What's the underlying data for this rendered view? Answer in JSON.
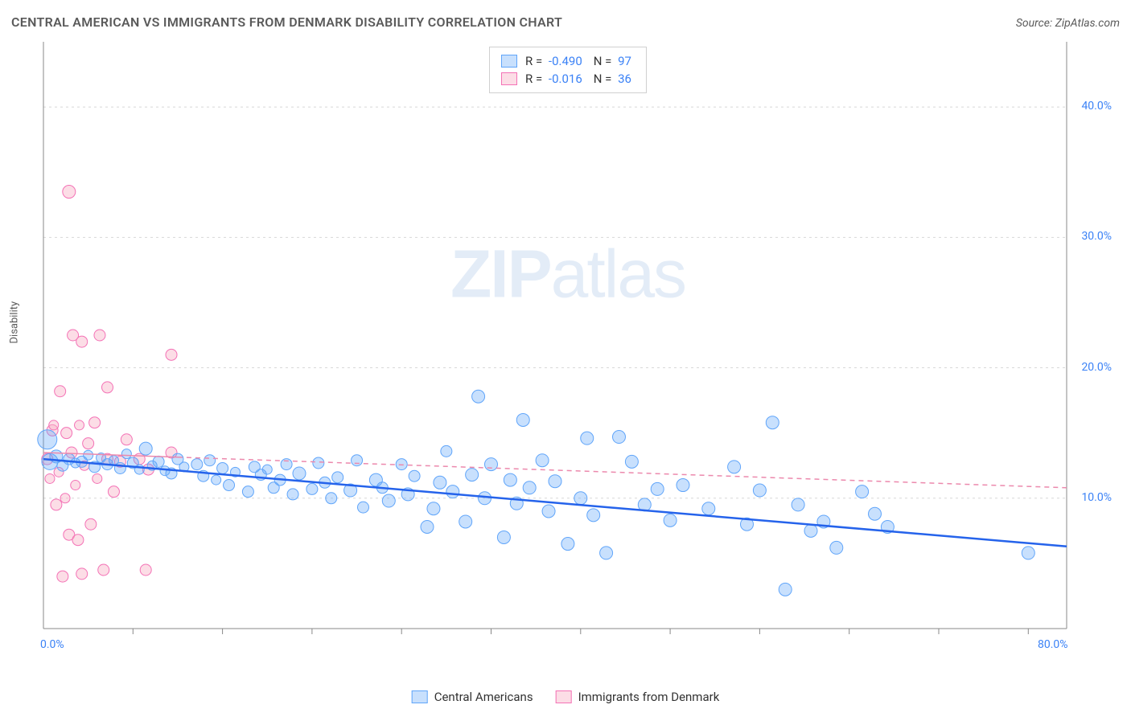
{
  "title": "CENTRAL AMERICAN VS IMMIGRANTS FROM DENMARK DISABILITY CORRELATION CHART",
  "source": "Source: ZipAtlas.com",
  "y_axis_label": "Disability",
  "watermark_zip": "ZIP",
  "watermark_atlas": "atlas",
  "chart": {
    "type": "scatter",
    "xlim": [
      0,
      80
    ],
    "ylim": [
      0,
      45
    ],
    "x_ticks": [
      0,
      80
    ],
    "x_tick_labels": [
      "0.0%",
      "80.0%"
    ],
    "x_minor_ticks": [
      7,
      14,
      21,
      28,
      35,
      42,
      49,
      56,
      63,
      70,
      77
    ],
    "y_ticks": [
      10,
      20,
      30,
      40
    ],
    "y_tick_labels": [
      "10.0%",
      "20.0%",
      "30.0%",
      "40.0%"
    ],
    "grid_color": "#d8d8d8",
    "axis_color": "#888888",
    "background_color": "#ffffff",
    "series": [
      {
        "name": "Central Americans",
        "color_fill": "rgba(96, 165, 250, 0.35)",
        "color_stroke": "#60a5fa",
        "trend_color": "#2563eb",
        "trend_dash": "none",
        "trend_width": 2.5,
        "r": "-0.490",
        "n": "97",
        "trend": {
          "x1": 0,
          "y1": 13.0,
          "x2": 80,
          "y2": 6.3
        },
        "points": [
          {
            "x": 0.3,
            "y": 14.5,
            "r": 12
          },
          {
            "x": 0.5,
            "y": 12.8,
            "r": 10
          },
          {
            "x": 1,
            "y": 13.2,
            "r": 8
          },
          {
            "x": 1.5,
            "y": 12.5,
            "r": 7
          },
          {
            "x": 2,
            "y": 13.0,
            "r": 7
          },
          {
            "x": 2.5,
            "y": 12.7,
            "r": 6
          },
          {
            "x": 3,
            "y": 12.8,
            "r": 7
          },
          {
            "x": 3.5,
            "y": 13.3,
            "r": 6
          },
          {
            "x": 4,
            "y": 12.4,
            "r": 7
          },
          {
            "x": 4.5,
            "y": 13.1,
            "r": 6
          },
          {
            "x": 5,
            "y": 12.6,
            "r": 7
          },
          {
            "x": 5.5,
            "y": 12.9,
            "r": 6
          },
          {
            "x": 6,
            "y": 12.3,
            "r": 7
          },
          {
            "x": 6.5,
            "y": 13.4,
            "r": 6
          },
          {
            "x": 7,
            "y": 12.7,
            "r": 7
          },
          {
            "x": 7.5,
            "y": 12.2,
            "r": 6
          },
          {
            "x": 8,
            "y": 13.8,
            "r": 8
          },
          {
            "x": 8.5,
            "y": 12.5,
            "r": 6
          },
          {
            "x": 9,
            "y": 12.8,
            "r": 7
          },
          {
            "x": 9.5,
            "y": 12.1,
            "r": 6
          },
          {
            "x": 10,
            "y": 11.9,
            "r": 7
          },
          {
            "x": 10.5,
            "y": 13.0,
            "r": 7
          },
          {
            "x": 11,
            "y": 12.4,
            "r": 6
          },
          {
            "x": 12,
            "y": 12.6,
            "r": 7
          },
          {
            "x": 12.5,
            "y": 11.7,
            "r": 7
          },
          {
            "x": 13,
            "y": 12.9,
            "r": 7
          },
          {
            "x": 13.5,
            "y": 11.4,
            "r": 6
          },
          {
            "x": 14,
            "y": 12.3,
            "r": 7
          },
          {
            "x": 14.5,
            "y": 11.0,
            "r": 7
          },
          {
            "x": 15,
            "y": 12.0,
            "r": 6
          },
          {
            "x": 16,
            "y": 10.5,
            "r": 7
          },
          {
            "x": 16.5,
            "y": 12.4,
            "r": 7
          },
          {
            "x": 17,
            "y": 11.8,
            "r": 7
          },
          {
            "x": 17.5,
            "y": 12.2,
            "r": 6
          },
          {
            "x": 18,
            "y": 10.8,
            "r": 7
          },
          {
            "x": 18.5,
            "y": 11.4,
            "r": 7
          },
          {
            "x": 19,
            "y": 12.6,
            "r": 7
          },
          {
            "x": 19.5,
            "y": 10.3,
            "r": 7
          },
          {
            "x": 20,
            "y": 11.9,
            "r": 8
          },
          {
            "x": 21,
            "y": 10.7,
            "r": 7
          },
          {
            "x": 21.5,
            "y": 12.7,
            "r": 7
          },
          {
            "x": 22,
            "y": 11.2,
            "r": 7
          },
          {
            "x": 22.5,
            "y": 10.0,
            "r": 7
          },
          {
            "x": 23,
            "y": 11.6,
            "r": 7
          },
          {
            "x": 24,
            "y": 10.6,
            "r": 8
          },
          {
            "x": 24.5,
            "y": 12.9,
            "r": 7
          },
          {
            "x": 25,
            "y": 9.3,
            "r": 7
          },
          {
            "x": 26,
            "y": 11.4,
            "r": 8
          },
          {
            "x": 26.5,
            "y": 10.8,
            "r": 7
          },
          {
            "x": 27,
            "y": 9.8,
            "r": 8
          },
          {
            "x": 28,
            "y": 12.6,
            "r": 7
          },
          {
            "x": 28.5,
            "y": 10.3,
            "r": 8
          },
          {
            "x": 29,
            "y": 11.7,
            "r": 7
          },
          {
            "x": 30,
            "y": 7.8,
            "r": 8
          },
          {
            "x": 30.5,
            "y": 9.2,
            "r": 8
          },
          {
            "x": 31,
            "y": 11.2,
            "r": 8
          },
          {
            "x": 31.5,
            "y": 13.6,
            "r": 7
          },
          {
            "x": 32,
            "y": 10.5,
            "r": 8
          },
          {
            "x": 33,
            "y": 8.2,
            "r": 8
          },
          {
            "x": 33.5,
            "y": 11.8,
            "r": 8
          },
          {
            "x": 34,
            "y": 17.8,
            "r": 8
          },
          {
            "x": 34.5,
            "y": 10.0,
            "r": 8
          },
          {
            "x": 35,
            "y": 12.6,
            "r": 8
          },
          {
            "x": 36,
            "y": 7.0,
            "r": 8
          },
          {
            "x": 36.5,
            "y": 11.4,
            "r": 8
          },
          {
            "x": 37,
            "y": 9.6,
            "r": 8
          },
          {
            "x": 37.5,
            "y": 16.0,
            "r": 8
          },
          {
            "x": 38,
            "y": 10.8,
            "r": 8
          },
          {
            "x": 39,
            "y": 12.9,
            "r": 8
          },
          {
            "x": 39.5,
            "y": 9.0,
            "r": 8
          },
          {
            "x": 40,
            "y": 11.3,
            "r": 8
          },
          {
            "x": 41,
            "y": 6.5,
            "r": 8
          },
          {
            "x": 42,
            "y": 10.0,
            "r": 8
          },
          {
            "x": 42.5,
            "y": 14.6,
            "r": 8
          },
          {
            "x": 43,
            "y": 8.7,
            "r": 8
          },
          {
            "x": 44,
            "y": 5.8,
            "r": 8
          },
          {
            "x": 45,
            "y": 14.7,
            "r": 8
          },
          {
            "x": 46,
            "y": 12.8,
            "r": 8
          },
          {
            "x": 47,
            "y": 9.5,
            "r": 8
          },
          {
            "x": 48,
            "y": 10.7,
            "r": 8
          },
          {
            "x": 49,
            "y": 8.3,
            "r": 8
          },
          {
            "x": 50,
            "y": 11.0,
            "r": 8
          },
          {
            "x": 52,
            "y": 9.2,
            "r": 8
          },
          {
            "x": 54,
            "y": 12.4,
            "r": 8
          },
          {
            "x": 55,
            "y": 8.0,
            "r": 8
          },
          {
            "x": 56,
            "y": 10.6,
            "r": 8
          },
          {
            "x": 57,
            "y": 15.8,
            "r": 8
          },
          {
            "x": 58,
            "y": 3.0,
            "r": 8
          },
          {
            "x": 59,
            "y": 9.5,
            "r": 8
          },
          {
            "x": 60,
            "y": 7.5,
            "r": 8
          },
          {
            "x": 61,
            "y": 8.2,
            "r": 8
          },
          {
            "x": 62,
            "y": 6.2,
            "r": 8
          },
          {
            "x": 64,
            "y": 10.5,
            "r": 8
          },
          {
            "x": 65,
            "y": 8.8,
            "r": 8
          },
          {
            "x": 66,
            "y": 7.8,
            "r": 8
          },
          {
            "x": 77,
            "y": 5.8,
            "r": 8
          }
        ]
      },
      {
        "name": "Immigrants from Denmark",
        "color_fill": "rgba(248, 180, 200, 0.45)",
        "color_stroke": "#f472b6",
        "trend_color": "#ec89ad",
        "trend_dash": "6,5",
        "trend_width": 1.5,
        "r": "-0.016",
        "n": "36",
        "trend": {
          "x1": 0,
          "y1": 13.5,
          "x2": 80,
          "y2": 10.8
        },
        "points": [
          {
            "x": 0.3,
            "y": 13.0,
            "r": 7
          },
          {
            "x": 0.5,
            "y": 11.5,
            "r": 6
          },
          {
            "x": 0.7,
            "y": 15.2,
            "r": 7
          },
          {
            "x": 0.8,
            "y": 15.6,
            "r": 6
          },
          {
            "x": 1.0,
            "y": 9.5,
            "r": 7
          },
          {
            "x": 1.2,
            "y": 12.0,
            "r": 6
          },
          {
            "x": 1.3,
            "y": 18.2,
            "r": 7
          },
          {
            "x": 1.5,
            "y": 4.0,
            "r": 7
          },
          {
            "x": 1.7,
            "y": 10.0,
            "r": 6
          },
          {
            "x": 1.8,
            "y": 15.0,
            "r": 7
          },
          {
            "x": 2.0,
            "y": 7.2,
            "r": 7
          },
          {
            "x": 2.0,
            "y": 33.5,
            "r": 8
          },
          {
            "x": 2.2,
            "y": 13.5,
            "r": 7
          },
          {
            "x": 2.3,
            "y": 22.5,
            "r": 7
          },
          {
            "x": 2.5,
            "y": 11.0,
            "r": 6
          },
          {
            "x": 2.7,
            "y": 6.8,
            "r": 7
          },
          {
            "x": 2.8,
            "y": 15.6,
            "r": 6
          },
          {
            "x": 3.0,
            "y": 22.0,
            "r": 7
          },
          {
            "x": 3.0,
            "y": 4.2,
            "r": 7
          },
          {
            "x": 3.2,
            "y": 12.5,
            "r": 6
          },
          {
            "x": 3.5,
            "y": 14.2,
            "r": 7
          },
          {
            "x": 3.7,
            "y": 8.0,
            "r": 7
          },
          {
            "x": 4.0,
            "y": 15.8,
            "r": 7
          },
          {
            "x": 4.2,
            "y": 11.5,
            "r": 6
          },
          {
            "x": 4.4,
            "y": 22.5,
            "r": 7
          },
          {
            "x": 4.7,
            "y": 4.5,
            "r": 7
          },
          {
            "x": 5.0,
            "y": 13.0,
            "r": 7
          },
          {
            "x": 5.0,
            "y": 18.5,
            "r": 7
          },
          {
            "x": 5.5,
            "y": 10.5,
            "r": 7
          },
          {
            "x": 6.0,
            "y": 12.8,
            "r": 7
          },
          {
            "x": 6.5,
            "y": 14.5,
            "r": 7
          },
          {
            "x": 7.5,
            "y": 13.0,
            "r": 7
          },
          {
            "x": 8.0,
            "y": 4.5,
            "r": 7
          },
          {
            "x": 8.2,
            "y": 12.2,
            "r": 7
          },
          {
            "x": 10.0,
            "y": 21.0,
            "r": 7
          },
          {
            "x": 10.0,
            "y": 13.5,
            "r": 7
          }
        ]
      }
    ]
  },
  "legend_bottom": [
    {
      "label": "Central Americans",
      "fill": "rgba(96,165,250,0.35)",
      "stroke": "#60a5fa"
    },
    {
      "label": "Immigrants from Denmark",
      "fill": "rgba(248,180,200,0.45)",
      "stroke": "#f472b6"
    }
  ]
}
